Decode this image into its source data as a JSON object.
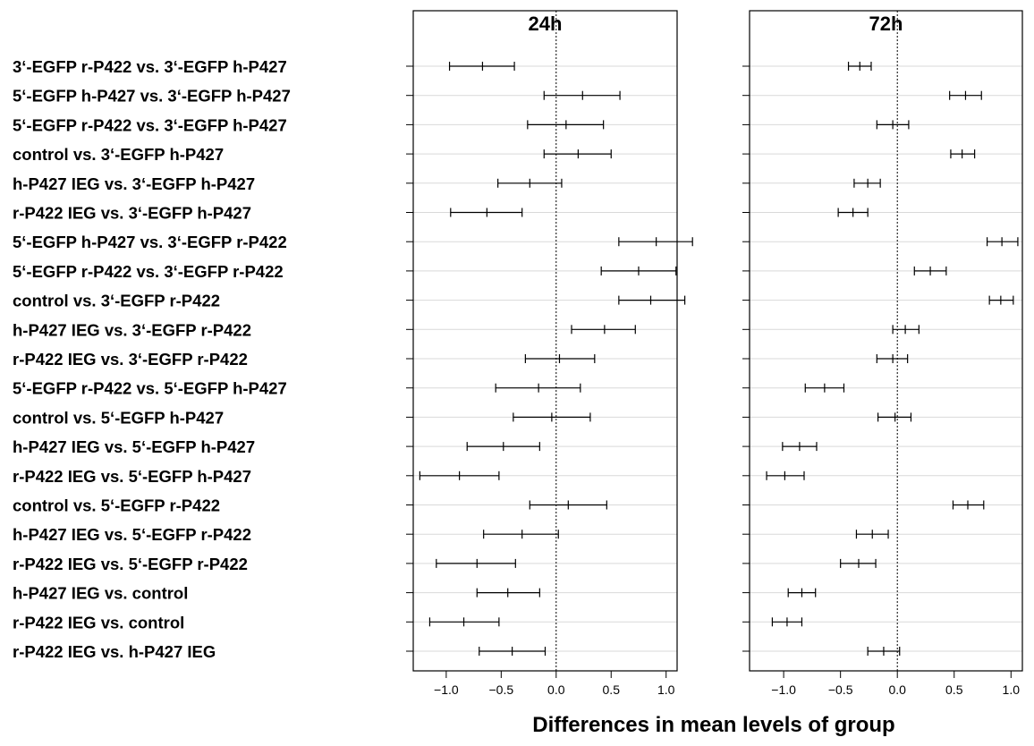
{
  "chart_data": {
    "type": "errorbar",
    "xlabel": "Differences in mean levels of group",
    "grid": true,
    "reference_line": 0,
    "xlim": [
      -1.3,
      1.1
    ],
    "xticks": [
      -1.0,
      -0.5,
      0.0,
      0.5,
      1.0
    ],
    "xtick_labels": [
      "−1.0",
      "−0.5",
      "0.0",
      "0.5",
      "1.0"
    ],
    "categories": [
      "3‘-EGFP r-P422 vs. 3‘-EGFP h-P427",
      "5‘-EGFP h-P427 vs. 3‘-EGFP h-P427",
      "5‘-EGFP r-P422 vs. 3‘-EGFP h-P427",
      "control vs. 3‘-EGFP h-P427",
      "h-P427 IEG vs. 3‘-EGFP h-P427",
      "r-P422 IEG vs. 3‘-EGFP h-P427",
      "5‘-EGFP h-P427 vs. 3‘-EGFP r-P422",
      "5‘-EGFP r-P422 vs. 3‘-EGFP r-P422",
      "control vs. 3‘-EGFP r-P422",
      "h-P427 IEG vs. 3‘-EGFP r-P422",
      "r-P422 IEG vs. 3‘-EGFP r-P422",
      "5‘-EGFP r-P422 vs. 5‘-EGFP h-P427",
      "control vs. 5‘-EGFP h-P427",
      "h-P427 IEG vs. 5‘-EGFP h-P427",
      "r-P422 IEG vs. 5‘-EGFP h-P427",
      "control vs. 5‘-EGFP r-P422",
      "h-P427 IEG vs. 5‘-EGFP r-P422",
      "r-P422 IEG vs. 5‘-EGFP r-P422",
      "h-P427 IEG vs. control",
      "r-P422 IEG vs. control",
      "r-P422 IEG vs. h-P427 IEG"
    ],
    "panels": [
      {
        "title": "24h",
        "lower": [
          -0.97,
          -0.11,
          -0.26,
          -0.11,
          -0.53,
          -0.96,
          0.57,
          0.41,
          0.57,
          0.14,
          -0.28,
          -0.55,
          -0.39,
          -0.81,
          -1.24,
          -0.24,
          -0.66,
          -1.09,
          -0.72,
          -1.15,
          -0.7
        ],
        "estimate": [
          -0.67,
          0.24,
          0.09,
          0.2,
          -0.24,
          -0.63,
          0.91,
          0.75,
          0.86,
          0.44,
          0.03,
          -0.16,
          -0.04,
          -0.48,
          -0.88,
          0.11,
          -0.31,
          -0.72,
          -0.44,
          -0.84,
          -0.4
        ],
        "upper": [
          -0.38,
          0.58,
          0.43,
          0.5,
          0.05,
          -0.31,
          1.24,
          1.09,
          1.17,
          0.72,
          0.35,
          0.22,
          0.31,
          -0.15,
          -0.52,
          0.46,
          0.02,
          -0.37,
          -0.15,
          -0.52,
          -0.1
        ]
      },
      {
        "title": "72h",
        "lower": [
          -0.43,
          0.46,
          -0.18,
          0.47,
          -0.38,
          -0.52,
          0.79,
          0.15,
          0.81,
          -0.04,
          -0.18,
          -0.81,
          -0.17,
          -1.01,
          -1.15,
          0.49,
          -0.36,
          -0.5,
          -0.96,
          -1.1,
          -0.26
        ],
        "estimate": [
          -0.33,
          0.6,
          -0.04,
          0.57,
          -0.26,
          -0.39,
          0.92,
          0.29,
          0.91,
          0.07,
          -0.04,
          -0.64,
          -0.02,
          -0.86,
          -0.99,
          0.62,
          -0.22,
          -0.34,
          -0.84,
          -0.97,
          -0.12
        ],
        "upper": [
          -0.23,
          0.74,
          0.1,
          0.68,
          -0.15,
          -0.26,
          1.06,
          0.43,
          1.02,
          0.19,
          0.09,
          -0.47,
          0.12,
          -0.71,
          -0.82,
          0.76,
          -0.08,
          -0.19,
          -0.72,
          -0.84,
          0.02
        ]
      }
    ]
  }
}
